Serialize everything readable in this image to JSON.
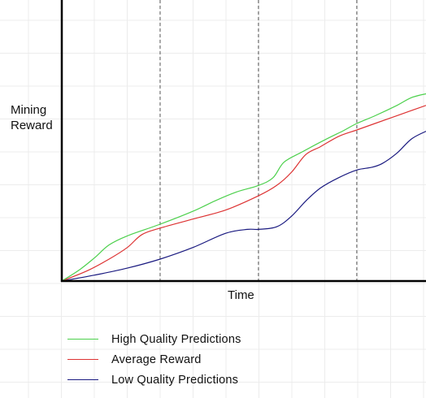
{
  "chart_data": {
    "type": "line",
    "title": "",
    "xlabel": "Time",
    "ylabel": "Mining\nReward",
    "xlim": [
      0,
      100
    ],
    "ylim": [
      0,
      100
    ],
    "grid": true,
    "vertical_markers": [
      27,
      54,
      81
    ],
    "legend_position": "bottom-left",
    "series": [
      {
        "name": "High Quality Predictions",
        "color": "#4cd04c",
        "x": [
          0,
          5,
          9,
          13,
          18,
          27,
          36,
          42,
          48,
          54,
          58,
          61,
          66,
          72,
          77,
          81,
          86,
          92,
          96,
          100
        ],
        "y": [
          0,
          4.5,
          9,
          14,
          17.5,
          22,
          27,
          31,
          34.5,
          37,
          40,
          46,
          50,
          54.5,
          58,
          61,
          64,
          68,
          71,
          72.5
        ]
      },
      {
        "name": "Average Reward",
        "color": "#dd3333",
        "x": [
          0,
          7,
          13,
          18,
          22,
          27,
          36,
          45,
          54,
          59,
          63,
          67,
          71,
          76,
          81,
          86,
          91,
          96,
          100
        ],
        "y": [
          0,
          4,
          8.5,
          13,
          18,
          20.5,
          24,
          27.5,
          33,
          37,
          42,
          49,
          52,
          56,
          58.5,
          61,
          63.5,
          66,
          68
        ]
      },
      {
        "name": "Low Quality Predictions",
        "color": "#1a1a80",
        "x": [
          0,
          9,
          18,
          27,
          36,
          45,
          51,
          54,
          59,
          63,
          67,
          71,
          76,
          81,
          85,
          88,
          92,
          96,
          100
        ],
        "y": [
          0,
          2.3,
          5,
          8.5,
          13,
          18.5,
          20,
          20,
          21,
          25,
          31,
          36,
          40,
          43,
          44,
          45.5,
          49.5,
          55,
          58
        ]
      }
    ]
  }
}
